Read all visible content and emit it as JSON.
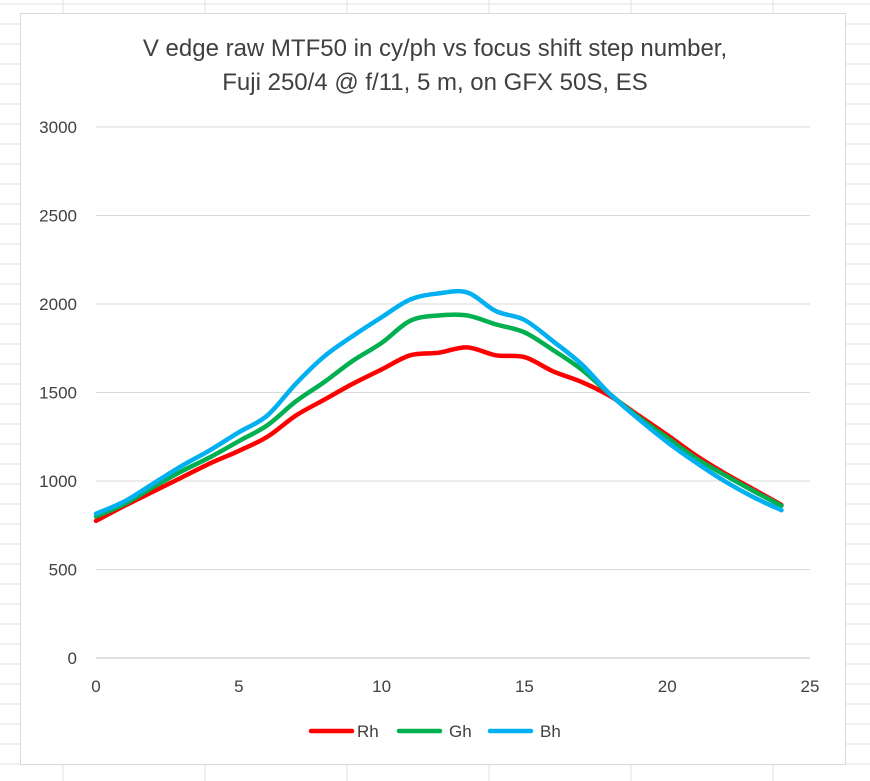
{
  "chart_data": {
    "type": "line",
    "title_lines": [
      "V edge raw MTF50 in cy/ph vs focus shift step number,",
      "Fuji 250/4 @ f/11, 5 m, on GFX 50S, ES"
    ],
    "xlabel": "",
    "ylabel": "",
    "xlim": [
      0,
      25
    ],
    "ylim": [
      0,
      3000
    ],
    "x_ticks": [
      0,
      5,
      10,
      15,
      20,
      25
    ],
    "y_ticks": [
      0,
      500,
      1000,
      1500,
      2000,
      2500,
      3000
    ],
    "grid": "horizontal",
    "legend_position": "bottom",
    "x": [
      0,
      1,
      2,
      3,
      4,
      5,
      6,
      7,
      8,
      9,
      10,
      11,
      12,
      13,
      14,
      15,
      16,
      17,
      18,
      19,
      20,
      21,
      22,
      23,
      24
    ],
    "series": [
      {
        "name": "Rh",
        "color": "#ff0000",
        "values": [
          775,
          860,
          940,
          1020,
          1100,
          1170,
          1250,
          1370,
          1460,
          1550,
          1630,
          1710,
          1725,
          1755,
          1710,
          1700,
          1620,
          1560,
          1480,
          1370,
          1260,
          1145,
          1045,
          955,
          865
        ]
      },
      {
        "name": "Gh",
        "color": "#00b050",
        "values": [
          800,
          870,
          965,
          1055,
          1135,
          1225,
          1315,
          1450,
          1560,
          1680,
          1780,
          1905,
          1935,
          1935,
          1885,
          1840,
          1740,
          1630,
          1490,
          1360,
          1245,
          1130,
          1035,
          945,
          860
        ]
      },
      {
        "name": "Bh",
        "color": "#00b0f0",
        "values": [
          815,
          885,
          985,
          1085,
          1175,
          1275,
          1370,
          1550,
          1705,
          1820,
          1925,
          2025,
          2060,
          2065,
          1960,
          1910,
          1790,
          1660,
          1490,
          1350,
          1220,
          1105,
          1000,
          910,
          835
        ]
      }
    ]
  }
}
